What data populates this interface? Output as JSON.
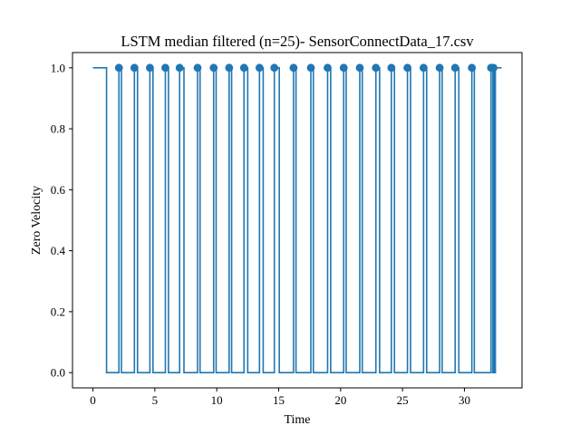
{
  "chart_data": {
    "type": "line",
    "title": "LSTM median filtered (n=25)- SensorConnectData_17.csv",
    "xlabel": "Time",
    "ylabel": "Zero Velocity",
    "xlim": [
      -1.65,
      34.65
    ],
    "ylim": [
      -0.05,
      1.05
    ],
    "x_ticks": [
      0,
      5,
      10,
      15,
      20,
      25,
      30
    ],
    "y_ticks": [
      0.0,
      0.2,
      0.4,
      0.6,
      0.8,
      1.0
    ],
    "x_tick_labels": [
      "0",
      "5",
      "10",
      "15",
      "20",
      "25",
      "30"
    ],
    "y_tick_labels": [
      "0.0",
      "0.2",
      "0.4",
      "0.6",
      "0.8",
      "1.0"
    ],
    "grid": false,
    "line_color": "#1f77b4",
    "series": [
      {
        "style": "step",
        "x": [
          0,
          1.1,
          1.1,
          2.1,
          2.1,
          2.3,
          2.3,
          3.35,
          3.35,
          3.6,
          3.6,
          4.6,
          4.6,
          4.85,
          4.85,
          5.85,
          5.85,
          6.1,
          6.1,
          7.0,
          7.0,
          7.35,
          7.35,
          8.45,
          8.45,
          8.65,
          8.65,
          9.75,
          9.75,
          9.95,
          9.95,
          11.0,
          11.0,
          11.2,
          11.2,
          12.2,
          12.2,
          12.5,
          12.5,
          13.45,
          13.45,
          13.75,
          13.75,
          14.65,
          14.65,
          15.05,
          15.05,
          16.2,
          16.2,
          16.4,
          16.4,
          17.6,
          17.6,
          17.8,
          17.8,
          18.95,
          18.95,
          19.2,
          19.2,
          20.25,
          20.25,
          20.45,
          20.45,
          21.55,
          21.55,
          21.75,
          21.75,
          22.85,
          22.85,
          23.15,
          23.15,
          24.1,
          24.1,
          24.35,
          24.35,
          25.4,
          25.4,
          25.65,
          25.65,
          26.7,
          26.7,
          26.95,
          26.95,
          28.0,
          28.0,
          28.2,
          28.2,
          29.25,
          29.25,
          29.55,
          29.55,
          30.6,
          30.6,
          30.8,
          30.8,
          32.15,
          32.15,
          32.3,
          32.3,
          32.35,
          32.35,
          32.45,
          32.45,
          32.5,
          32.5,
          33.0
        ],
        "y": [
          1,
          1,
          0,
          0,
          1,
          1,
          0,
          0,
          1,
          1,
          0,
          0,
          1,
          1,
          0,
          0,
          1,
          1,
          0,
          0,
          1,
          1,
          0,
          0,
          1,
          1,
          0,
          0,
          1,
          1,
          0,
          0,
          1,
          1,
          0,
          0,
          1,
          1,
          0,
          0,
          1,
          1,
          0,
          0,
          1,
          1,
          0,
          0,
          1,
          1,
          0,
          0,
          1,
          1,
          0,
          0,
          1,
          1,
          0,
          0,
          1,
          1,
          0,
          0,
          1,
          1,
          0,
          0,
          1,
          1,
          0,
          0,
          1,
          1,
          0,
          0,
          1,
          1,
          0,
          0,
          1,
          1,
          0,
          0,
          1,
          1,
          0,
          0,
          1,
          1,
          0,
          0,
          1,
          1,
          0,
          0,
          1,
          1,
          0,
          0,
          1,
          1,
          0,
          0,
          1,
          1
        ]
      },
      {
        "style": "markers",
        "x": [
          2.1,
          3.35,
          4.6,
          5.85,
          7.0,
          8.45,
          9.75,
          11.0,
          12.2,
          13.45,
          14.65,
          16.2,
          17.6,
          18.95,
          20.25,
          21.55,
          22.85,
          24.1,
          25.4,
          26.7,
          28.0,
          29.25,
          30.6,
          32.15,
          32.35
        ],
        "y": [
          1,
          1,
          1,
          1,
          1,
          1,
          1,
          1,
          1,
          1,
          1,
          1,
          1,
          1,
          1,
          1,
          1,
          1,
          1,
          1,
          1,
          1,
          1,
          1,
          1
        ]
      }
    ]
  }
}
